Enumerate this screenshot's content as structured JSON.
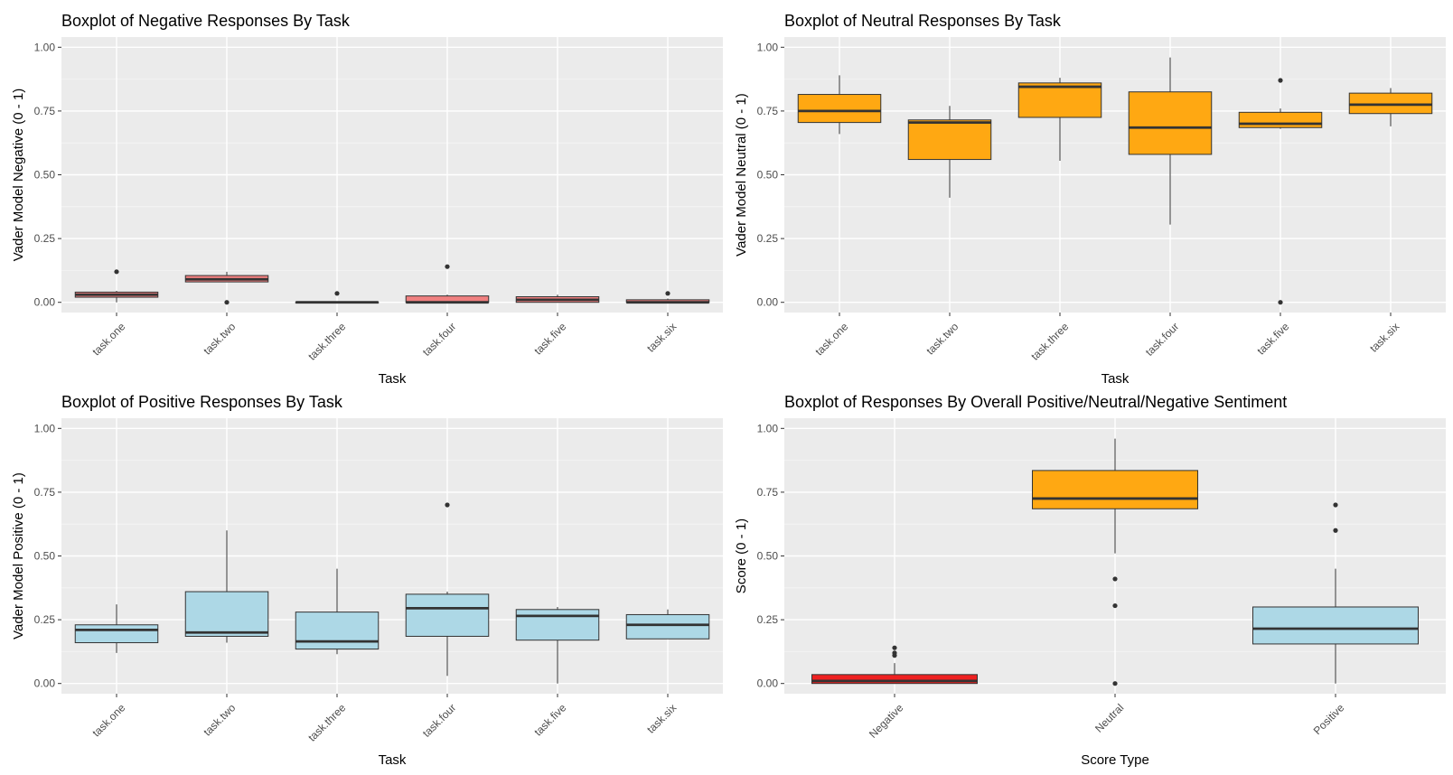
{
  "chart_data": [
    {
      "type": "boxplot",
      "title": "Boxplot of Negative Responses By Task",
      "xlabel": "Task",
      "ylabel": "Vader Model Negative (0 - 1)",
      "ylim": [
        -0.04,
        1.04
      ],
      "yticks": [
        "0.00",
        "0.25",
        "0.50",
        "0.75",
        "1.00"
      ],
      "fill": "#f08080",
      "categories": [
        "task.one",
        "task.two",
        "task.three",
        "task.four",
        "task.five",
        "task.six"
      ],
      "boxes": [
        {
          "lower": 0.0,
          "q1": 0.02,
          "median": 0.03,
          "q3": 0.04,
          "upper": 0.045,
          "outliers": [
            0.12
          ]
        },
        {
          "lower": 0.08,
          "q1": 0.08,
          "median": 0.09,
          "q3": 0.105,
          "upper": 0.12,
          "outliers": [
            0.0
          ]
        },
        {
          "lower": 0.0,
          "q1": 0.0,
          "median": 0.0,
          "q3": 0.0,
          "upper": 0.0,
          "outliers": [
            0.035
          ]
        },
        {
          "lower": 0.0,
          "q1": 0.0,
          "median": 0.0,
          "q3": 0.025,
          "upper": 0.03,
          "outliers": [
            0.14
          ]
        },
        {
          "lower": 0.0,
          "q1": 0.0,
          "median": 0.01,
          "q3": 0.022,
          "upper": 0.03,
          "outliers": []
        },
        {
          "lower": 0.0,
          "q1": 0.0,
          "median": 0.0,
          "q3": 0.01,
          "upper": 0.015,
          "outliers": [
            0.035
          ]
        }
      ]
    },
    {
      "type": "boxplot",
      "title": "Boxplot of Neutral Responses By Task",
      "xlabel": "Task",
      "ylabel": "Vader Model Neutral (0 - 1)",
      "ylim": [
        -0.04,
        1.04
      ],
      "yticks": [
        "0.00",
        "0.25",
        "0.50",
        "0.75",
        "1.00"
      ],
      "fill": "#ffa812",
      "categories": [
        "task.one",
        "task.two",
        "task.three",
        "task.four",
        "task.five",
        "task.six"
      ],
      "boxes": [
        {
          "lower": 0.66,
          "q1": 0.705,
          "median": 0.75,
          "q3": 0.815,
          "upper": 0.89,
          "outliers": []
        },
        {
          "lower": 0.41,
          "q1": 0.56,
          "median": 0.705,
          "q3": 0.715,
          "upper": 0.77,
          "outliers": []
        },
        {
          "lower": 0.555,
          "q1": 0.725,
          "median": 0.845,
          "q3": 0.86,
          "upper": 0.88,
          "outliers": []
        },
        {
          "lower": 0.305,
          "q1": 0.58,
          "median": 0.685,
          "q3": 0.825,
          "upper": 0.96,
          "outliers": []
        },
        {
          "lower": 0.68,
          "q1": 0.685,
          "median": 0.7,
          "q3": 0.745,
          "upper": 0.76,
          "outliers": [
            0.87,
            0.0
          ]
        },
        {
          "lower": 0.69,
          "q1": 0.74,
          "median": 0.775,
          "q3": 0.82,
          "upper": 0.84,
          "outliers": []
        }
      ]
    },
    {
      "type": "boxplot",
      "title": "Boxplot of Positive Responses By Task",
      "xlabel": "Task",
      "ylabel": "Vader Model Positive (0 - 1)",
      "ylim": [
        -0.04,
        1.04
      ],
      "yticks": [
        "0.00",
        "0.25",
        "0.50",
        "0.75",
        "1.00"
      ],
      "fill": "#add8e6",
      "categories": [
        "task.one",
        "task.two",
        "task.three",
        "task.four",
        "task.five",
        "task.six"
      ],
      "boxes": [
        {
          "lower": 0.12,
          "q1": 0.16,
          "median": 0.21,
          "q3": 0.23,
          "upper": 0.31,
          "outliers": []
        },
        {
          "lower": 0.16,
          "q1": 0.185,
          "median": 0.2,
          "q3": 0.36,
          "upper": 0.6,
          "outliers": []
        },
        {
          "lower": 0.115,
          "q1": 0.135,
          "median": 0.165,
          "q3": 0.28,
          "upper": 0.45,
          "outliers": []
        },
        {
          "lower": 0.03,
          "q1": 0.185,
          "median": 0.295,
          "q3": 0.35,
          "upper": 0.36,
          "outliers": [
            0.7
          ]
        },
        {
          "lower": 0.0,
          "q1": 0.17,
          "median": 0.265,
          "q3": 0.29,
          "upper": 0.3,
          "outliers": []
        },
        {
          "lower": 0.175,
          "q1": 0.175,
          "median": 0.23,
          "q3": 0.27,
          "upper": 0.29,
          "outliers": []
        }
      ]
    },
    {
      "type": "boxplot",
      "title": "Boxplot of Responses By Overall Positive/Neutral/Negative Sentiment",
      "xlabel": "Score Type",
      "ylabel": "Score (0 - 1)",
      "ylim": [
        -0.04,
        1.04
      ],
      "yticks": [
        "0.00",
        "0.25",
        "0.50",
        "0.75",
        "1.00"
      ],
      "fills": [
        "#ee2020",
        "#ffa812",
        "#add8e6"
      ],
      "categories": [
        "Negative",
        "Neutral",
        "Positive"
      ],
      "boxes": [
        {
          "lower": 0.0,
          "q1": 0.0,
          "median": 0.01,
          "q3": 0.035,
          "upper": 0.08,
          "outliers": [
            0.11,
            0.12,
            0.14
          ]
        },
        {
          "lower": 0.51,
          "q1": 0.685,
          "median": 0.725,
          "q3": 0.835,
          "upper": 0.96,
          "outliers": [
            0.41,
            0.305,
            0.0
          ]
        },
        {
          "lower": 0.0,
          "q1": 0.155,
          "median": 0.215,
          "q3": 0.3,
          "upper": 0.45,
          "outliers": [
            0.6,
            0.7
          ]
        }
      ]
    }
  ]
}
